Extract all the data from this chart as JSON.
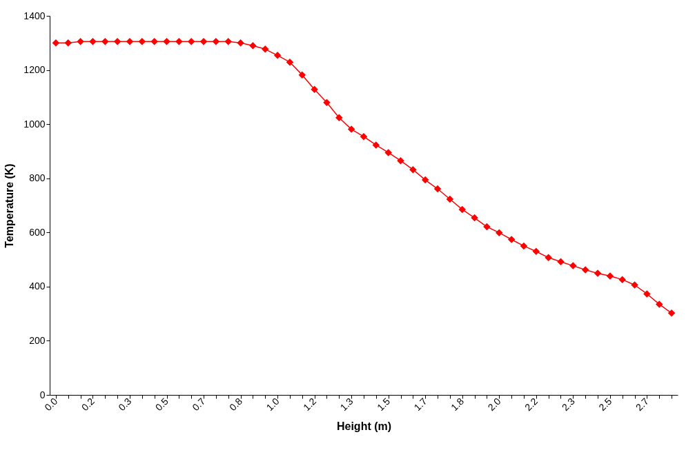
{
  "chart_data": {
    "type": "line",
    "xlabel": "Height (m)",
    "ylabel": "Temperature (K)",
    "categories": [
      "0.0",
      null,
      null,
      "0.2",
      null,
      null,
      "0.3",
      null,
      null,
      "0.5",
      null,
      null,
      "0.7",
      null,
      null,
      "0.8",
      null,
      null,
      "1.0",
      null,
      null,
      "1.2",
      null,
      null,
      "1.3",
      null,
      null,
      "1.5",
      null,
      null,
      "1.7",
      null,
      null,
      "1.8",
      null,
      null,
      "2.0",
      null,
      null,
      "2.2",
      null,
      null,
      "2.3",
      null,
      null,
      "2.5",
      null,
      null,
      "2.7",
      null,
      null
    ],
    "series": [
      {
        "color": "#ff0000",
        "values": [
          1300,
          1300,
          1305,
          1305,
          1305,
          1305,
          1305,
          1305,
          1305,
          1305,
          1305,
          1305,
          1305,
          1305,
          1305,
          1300,
          1290,
          1277,
          1254,
          1229,
          1182,
          1128,
          1080,
          1024,
          981,
          954,
          923,
          895,
          865,
          832,
          794,
          761,
          723,
          685,
          654,
          621,
          599,
          574,
          550,
          530,
          507,
          492,
          477,
          462,
          449,
          439,
          426,
          406,
          373,
          335,
          302
        ]
      }
    ],
    "ylim": [
      0,
      1400
    ],
    "yticks": [
      0,
      200,
      400,
      600,
      800,
      1000,
      1200,
      1400
    ],
    "grid": false,
    "marker": "diamond",
    "line_style": "solid"
  }
}
